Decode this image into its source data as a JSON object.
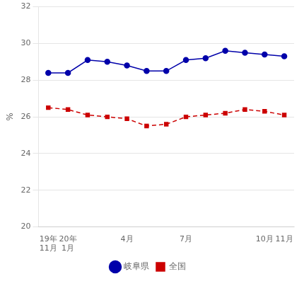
{
  "chart_data": {
    "type": "line",
    "categories": [
      "19年\n11月",
      "20年\n1月",
      null,
      null,
      "4月",
      null,
      null,
      "7月",
      null,
      null,
      null,
      "10月",
      "11月"
    ],
    "series": [
      {
        "name": "岐阜県",
        "color": "#0000AA",
        "marker": "circle",
        "line_style": "solid",
        "values": [
          28.4,
          28.4,
          29.1,
          29.0,
          28.8,
          28.5,
          28.5,
          29.1,
          29.2,
          29.6,
          29.5,
          29.4,
          29.3
        ]
      },
      {
        "name": "全国",
        "color": "#CC0000",
        "marker": "square",
        "line_style": "dashed",
        "values": [
          26.5,
          26.4,
          26.1,
          26.0,
          25.9,
          25.5,
          25.6,
          26.0,
          26.1,
          26.2,
          26.4,
          26.3,
          26.1
        ]
      }
    ],
    "ylabel": "%",
    "ylim": [
      20,
      32
    ],
    "yticks": [
      20,
      22,
      24,
      26,
      28,
      30,
      32
    ],
    "grid": "y",
    "legend": "bottom"
  }
}
